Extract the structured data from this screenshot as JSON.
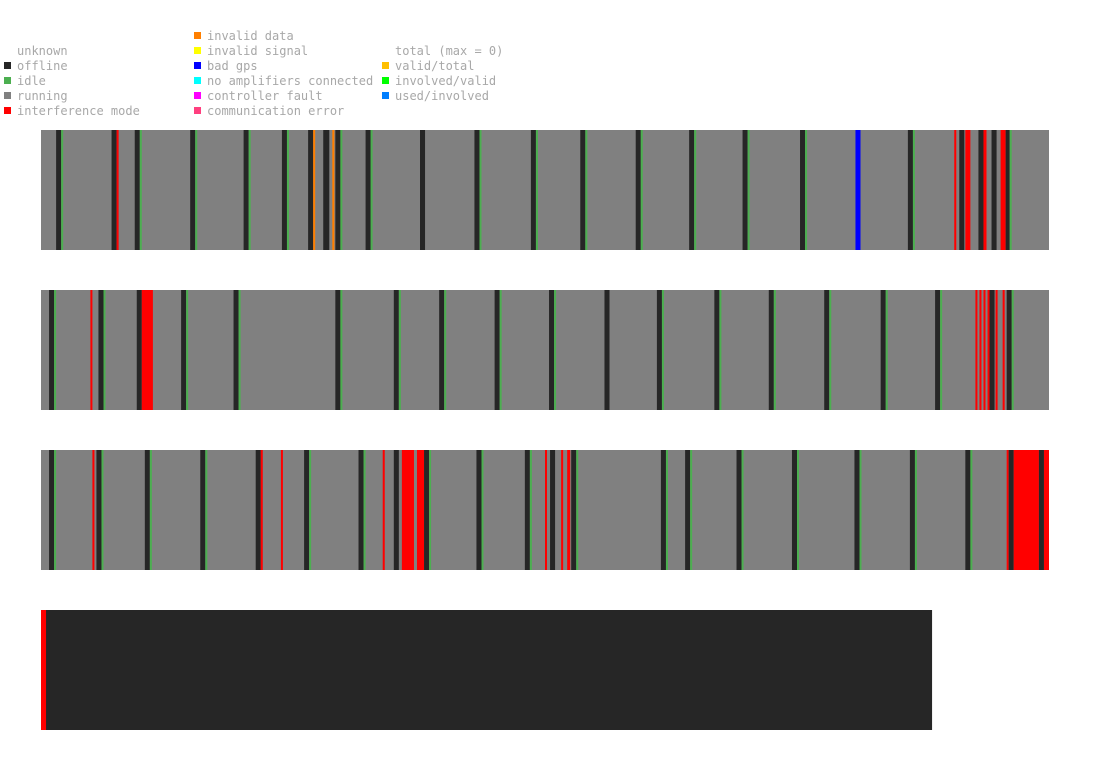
{
  "legend": {
    "columns": [
      [
        {
          "label": "unknown",
          "color": null
        },
        {
          "label": "offline",
          "color": "#262626"
        },
        {
          "label": "idle",
          "color": "#4caf50"
        },
        {
          "label": "running",
          "color": "#808080"
        },
        {
          "label": "interference mode",
          "color": "#ff0000"
        }
      ],
      [
        {
          "label": "invalid data",
          "color": "#ff7f00"
        },
        {
          "label": "invalid signal",
          "color": "#ffff00"
        },
        {
          "label": "bad gps",
          "color": "#0000ff"
        },
        {
          "label": "no amplifiers connected",
          "color": "#00ffff"
        },
        {
          "label": "controller fault",
          "color": "#ff00ff"
        },
        {
          "label": "communication error",
          "color": "#ff3f7f"
        }
      ],
      [
        {
          "label": "total (max = 0)",
          "color": null
        },
        {
          "label": "valid/total",
          "color": "#ffbf00"
        },
        {
          "label": "involved/valid",
          "color": "#00ff00"
        },
        {
          "label": "used/involved",
          "color": "#007fff"
        }
      ]
    ]
  },
  "chart_data": {
    "type": "timeline",
    "domain": [
      0,
      100
    ],
    "base_state": "running",
    "colors": {
      "offline": "#262626",
      "idle": "#4caf50",
      "running": "#808080",
      "interference mode": "#ff0000",
      "invalid data": "#ff7f00",
      "bad gps": "#0000ff"
    },
    "rows": [
      {
        "end": 100,
        "segments": [
          {
            "state": "offline",
            "start": 1.5,
            "end": 2.0
          },
          {
            "state": "idle",
            "start": 2.0,
            "end": 2.2
          },
          {
            "state": "offline",
            "start": 7.0,
            "end": 7.5
          },
          {
            "state": "interference mode",
            "start": 7.5,
            "end": 7.7
          },
          {
            "state": "offline",
            "start": 9.3,
            "end": 9.8
          },
          {
            "state": "idle",
            "start": 9.8,
            "end": 10.0
          },
          {
            "state": "offline",
            "start": 14.8,
            "end": 15.3
          },
          {
            "state": "idle",
            "start": 15.3,
            "end": 15.5
          },
          {
            "state": "offline",
            "start": 20.1,
            "end": 20.6
          },
          {
            "state": "idle",
            "start": 20.6,
            "end": 20.8
          },
          {
            "state": "offline",
            "start": 23.9,
            "end": 24.4
          },
          {
            "state": "idle",
            "start": 24.4,
            "end": 24.6
          },
          {
            "state": "offline",
            "start": 26.5,
            "end": 27.0
          },
          {
            "state": "invalid data",
            "start": 27.0,
            "end": 27.2
          },
          {
            "state": "invalid data",
            "start": 28.1,
            "end": 28.3
          },
          {
            "state": "offline",
            "start": 28.0,
            "end": 28.6
          },
          {
            "state": "invalid data",
            "start": 28.9,
            "end": 29.1
          },
          {
            "state": "offline",
            "start": 29.2,
            "end": 29.7
          },
          {
            "state": "idle",
            "start": 29.7,
            "end": 29.9
          },
          {
            "state": "offline",
            "start": 32.2,
            "end": 32.7
          },
          {
            "state": "idle",
            "start": 32.7,
            "end": 32.9
          },
          {
            "state": "offline",
            "start": 37.6,
            "end": 38.1
          },
          {
            "state": "offline",
            "start": 43.0,
            "end": 43.5
          },
          {
            "state": "idle",
            "start": 43.5,
            "end": 43.7
          },
          {
            "state": "offline",
            "start": 48.6,
            "end": 49.1
          },
          {
            "state": "idle",
            "start": 49.1,
            "end": 49.3
          },
          {
            "state": "offline",
            "start": 53.5,
            "end": 54.0
          },
          {
            "state": "idle",
            "start": 54.0,
            "end": 54.2
          },
          {
            "state": "offline",
            "start": 59.0,
            "end": 59.5
          },
          {
            "state": "idle",
            "start": 59.5,
            "end": 59.7
          },
          {
            "state": "offline",
            "start": 64.3,
            "end": 64.8
          },
          {
            "state": "idle",
            "start": 64.8,
            "end": 65.0
          },
          {
            "state": "offline",
            "start": 69.6,
            "end": 70.1
          },
          {
            "state": "idle",
            "start": 70.1,
            "end": 70.3
          },
          {
            "state": "offline",
            "start": 75.3,
            "end": 75.8
          },
          {
            "state": "idle",
            "start": 75.8,
            "end": 76.0
          },
          {
            "state": "bad gps",
            "start": 80.8,
            "end": 81.3
          },
          {
            "state": "offline",
            "start": 86.0,
            "end": 86.5
          },
          {
            "state": "idle",
            "start": 86.5,
            "end": 86.7
          },
          {
            "state": "interference mode",
            "start": 90.6,
            "end": 90.8
          },
          {
            "state": "offline",
            "start": 91.1,
            "end": 91.6
          },
          {
            "state": "interference mode",
            "start": 91.7,
            "end": 92.2
          },
          {
            "state": "offline",
            "start": 93.0,
            "end": 93.5
          },
          {
            "state": "interference mode",
            "start": 93.5,
            "end": 93.8
          },
          {
            "state": "offline",
            "start": 94.3,
            "end": 94.8
          },
          {
            "state": "interference mode",
            "start": 95.2,
            "end": 95.7
          },
          {
            "state": "offline",
            "start": 95.7,
            "end": 96.1
          },
          {
            "state": "idle",
            "start": 96.1,
            "end": 96.3
          }
        ]
      },
      {
        "end": 100,
        "segments": [
          {
            "state": "offline",
            "start": 0.8,
            "end": 1.3
          },
          {
            "state": "idle",
            "start": 1.3,
            "end": 1.5
          },
          {
            "state": "interference mode",
            "start": 4.9,
            "end": 5.1
          },
          {
            "state": "offline",
            "start": 5.7,
            "end": 6.2
          },
          {
            "state": "idle",
            "start": 6.2,
            "end": 6.4
          },
          {
            "state": "offline",
            "start": 9.5,
            "end": 10.0
          },
          {
            "state": "interference mode",
            "start": 10.0,
            "end": 11.1
          },
          {
            "state": "offline",
            "start": 13.9,
            "end": 14.4
          },
          {
            "state": "idle",
            "start": 14.4,
            "end": 14.6
          },
          {
            "state": "offline",
            "start": 19.1,
            "end": 19.6
          },
          {
            "state": "idle",
            "start": 19.6,
            "end": 19.8
          },
          {
            "state": "offline",
            "start": 29.2,
            "end": 29.7
          },
          {
            "state": "idle",
            "start": 29.7,
            "end": 29.9
          },
          {
            "state": "offline",
            "start": 35.0,
            "end": 35.5
          },
          {
            "state": "idle",
            "start": 35.5,
            "end": 35.7
          },
          {
            "state": "offline",
            "start": 39.5,
            "end": 40.0
          },
          {
            "state": "idle",
            "start": 40.0,
            "end": 40.2
          },
          {
            "state": "offline",
            "start": 45.0,
            "end": 45.5
          },
          {
            "state": "idle",
            "start": 45.5,
            "end": 45.7
          },
          {
            "state": "offline",
            "start": 50.4,
            "end": 50.9
          },
          {
            "state": "idle",
            "start": 50.9,
            "end": 51.1
          },
          {
            "state": "offline",
            "start": 55.9,
            "end": 56.4
          },
          {
            "state": "offline",
            "start": 61.1,
            "end": 61.6
          },
          {
            "state": "idle",
            "start": 61.6,
            "end": 61.8
          },
          {
            "state": "offline",
            "start": 66.8,
            "end": 67.3
          },
          {
            "state": "idle",
            "start": 67.3,
            "end": 67.5
          },
          {
            "state": "offline",
            "start": 72.2,
            "end": 72.7
          },
          {
            "state": "idle",
            "start": 72.7,
            "end": 72.9
          },
          {
            "state": "offline",
            "start": 77.7,
            "end": 78.2
          },
          {
            "state": "idle",
            "start": 78.2,
            "end": 78.4
          },
          {
            "state": "offline",
            "start": 83.3,
            "end": 83.8
          },
          {
            "state": "idle",
            "start": 83.8,
            "end": 84.0
          },
          {
            "state": "offline",
            "start": 88.7,
            "end": 89.2
          },
          {
            "state": "idle",
            "start": 89.2,
            "end": 89.4
          },
          {
            "state": "interference mode",
            "start": 92.7,
            "end": 92.9
          },
          {
            "state": "interference mode",
            "start": 93.1,
            "end": 93.3
          },
          {
            "state": "interference mode",
            "start": 93.5,
            "end": 93.7
          },
          {
            "state": "interference mode",
            "start": 93.9,
            "end": 94.1
          },
          {
            "state": "offline",
            "start": 94.1,
            "end": 94.6
          },
          {
            "state": "interference mode",
            "start": 94.7,
            "end": 94.9
          },
          {
            "state": "interference mode",
            "start": 95.4,
            "end": 95.6
          },
          {
            "state": "offline",
            "start": 95.8,
            "end": 96.3
          },
          {
            "state": "idle",
            "start": 96.3,
            "end": 96.5
          }
        ]
      },
      {
        "end": 100,
        "segments": [
          {
            "state": "offline",
            "start": 0.8,
            "end": 1.3
          },
          {
            "state": "idle",
            "start": 1.3,
            "end": 1.5
          },
          {
            "state": "interference mode",
            "start": 5.1,
            "end": 5.3
          },
          {
            "state": "offline",
            "start": 5.5,
            "end": 6.0
          },
          {
            "state": "idle",
            "start": 6.0,
            "end": 6.2
          },
          {
            "state": "offline",
            "start": 10.3,
            "end": 10.8
          },
          {
            "state": "idle",
            "start": 10.8,
            "end": 11.0
          },
          {
            "state": "offline",
            "start": 15.8,
            "end": 16.3
          },
          {
            "state": "idle",
            "start": 16.3,
            "end": 16.5
          },
          {
            "state": "offline",
            "start": 21.3,
            "end": 21.8
          },
          {
            "state": "interference mode",
            "start": 21.8,
            "end": 22.0
          },
          {
            "state": "interference mode",
            "start": 23.8,
            "end": 24.0
          },
          {
            "state": "offline",
            "start": 26.1,
            "end": 26.6
          },
          {
            "state": "idle",
            "start": 26.6,
            "end": 26.8
          },
          {
            "state": "offline",
            "start": 31.5,
            "end": 32.0
          },
          {
            "state": "idle",
            "start": 32.0,
            "end": 32.2
          },
          {
            "state": "interference mode",
            "start": 33.9,
            "end": 34.1
          },
          {
            "state": "offline",
            "start": 35.0,
            "end": 35.5
          },
          {
            "state": "interference mode",
            "start": 35.8,
            "end": 37.0
          },
          {
            "state": "interference mode",
            "start": 37.3,
            "end": 38.0
          },
          {
            "state": "offline",
            "start": 38.0,
            "end": 38.5
          },
          {
            "state": "idle",
            "start": 38.5,
            "end": 38.7
          },
          {
            "state": "offline",
            "start": 43.2,
            "end": 43.7
          },
          {
            "state": "idle",
            "start": 43.7,
            "end": 43.9
          },
          {
            "state": "offline",
            "start": 48.0,
            "end": 48.5
          },
          {
            "state": "idle",
            "start": 48.5,
            "end": 48.7
          },
          {
            "state": "interference mode",
            "start": 50.0,
            "end": 50.2
          },
          {
            "state": "offline",
            "start": 50.5,
            "end": 51.0
          },
          {
            "state": "interference mode",
            "start": 51.6,
            "end": 51.8
          },
          {
            "state": "interference mode",
            "start": 52.2,
            "end": 52.5
          },
          {
            "state": "offline",
            "start": 52.6,
            "end": 53.1
          },
          {
            "state": "idle",
            "start": 53.1,
            "end": 53.3
          },
          {
            "state": "offline",
            "start": 61.5,
            "end": 62.0
          },
          {
            "state": "idle",
            "start": 62.0,
            "end": 62.2
          },
          {
            "state": "offline",
            "start": 63.9,
            "end": 64.4
          },
          {
            "state": "idle",
            "start": 64.4,
            "end": 64.6
          },
          {
            "state": "offline",
            "start": 69.0,
            "end": 69.5
          },
          {
            "state": "idle",
            "start": 69.5,
            "end": 69.7
          },
          {
            "state": "offline",
            "start": 74.5,
            "end": 75.0
          },
          {
            "state": "idle",
            "start": 75.0,
            "end": 75.2
          },
          {
            "state": "offline",
            "start": 80.7,
            "end": 81.2
          },
          {
            "state": "idle",
            "start": 81.2,
            "end": 81.4
          },
          {
            "state": "offline",
            "start": 86.2,
            "end": 86.7
          },
          {
            "state": "idle",
            "start": 86.7,
            "end": 86.9
          },
          {
            "state": "offline",
            "start": 91.7,
            "end": 92.2
          },
          {
            "state": "idle",
            "start": 92.2,
            "end": 92.4
          },
          {
            "state": "interference mode",
            "start": 95.8,
            "end": 96.0
          },
          {
            "state": "offline",
            "start": 96.0,
            "end": 96.5
          },
          {
            "state": "interference mode",
            "start": 96.5,
            "end": 99.0
          },
          {
            "state": "offline",
            "start": 99.0,
            "end": 99.5
          },
          {
            "state": "interference mode",
            "start": 99.5,
            "end": 100
          }
        ]
      },
      {
        "end": 88.4,
        "base_state": "offline",
        "segments": [
          {
            "state": "interference mode",
            "start": 0,
            "end": 0.5
          }
        ]
      }
    ]
  }
}
